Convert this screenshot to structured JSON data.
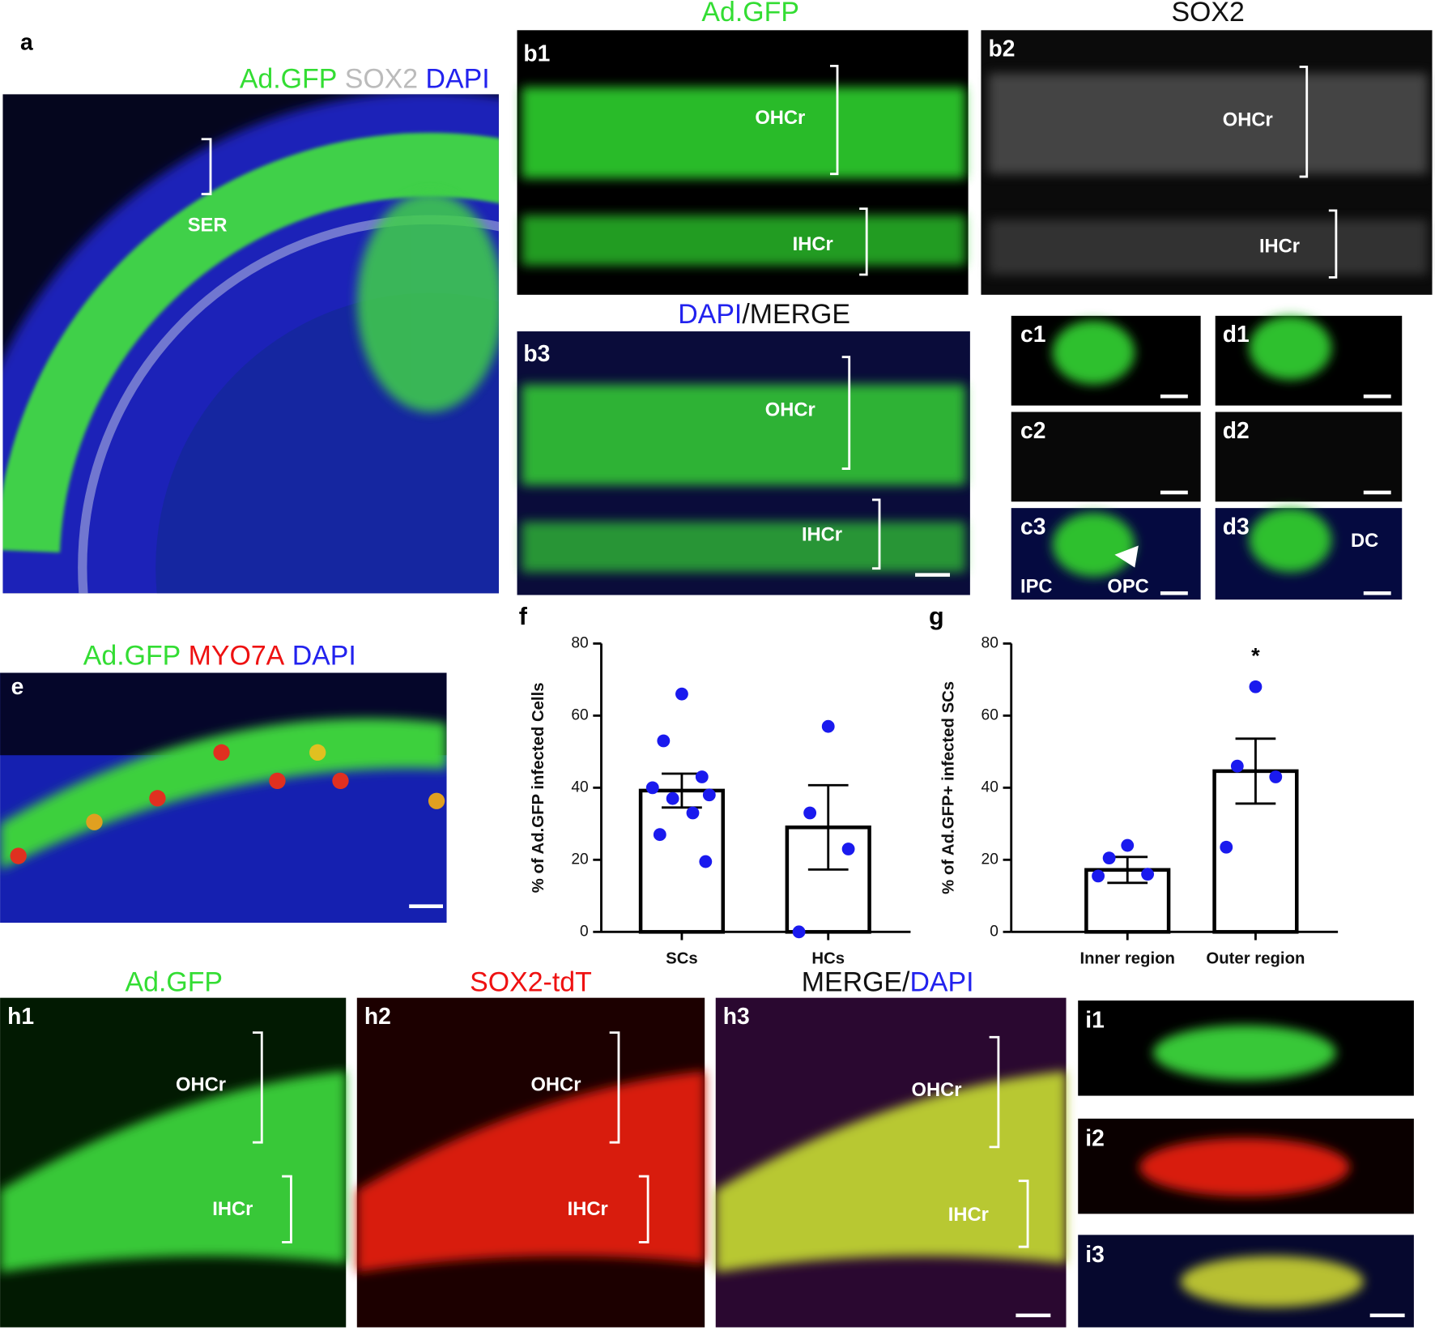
{
  "panels": {
    "a": {
      "label": "a",
      "title": [
        "Ad.GFP",
        "SOX2",
        "DAPI"
      ],
      "annotations": [
        "SER"
      ]
    },
    "b1": {
      "label": "b1",
      "title": "Ad.GFP",
      "annotations": [
        "OHCr",
        "IHCr"
      ]
    },
    "b2": {
      "label": "b2",
      "title": "SOX2",
      "annotations": [
        "OHCr",
        "IHCr"
      ]
    },
    "b3": {
      "label": "b3",
      "title": [
        "DAPI",
        "/MERGE"
      ],
      "annotations": [
        "OHCr",
        "IHCr"
      ]
    },
    "c1": {
      "label": "c1"
    },
    "c2": {
      "label": "c2"
    },
    "c3": {
      "label": "c3",
      "annotations": [
        "IPC",
        "OPC"
      ]
    },
    "d1": {
      "label": "d1"
    },
    "d2": {
      "label": "d2"
    },
    "d3": {
      "label": "d3",
      "annotations": [
        "DC"
      ]
    },
    "e": {
      "label": "e",
      "title": [
        "Ad.GFP",
        "MYO7A",
        "DAPI"
      ]
    },
    "h1": {
      "label": "h1",
      "title": "Ad.GFP",
      "annotations": [
        "OHCr",
        "IHCr"
      ]
    },
    "h2": {
      "label": "h2",
      "title": "SOX2-tdT",
      "annotations": [
        "OHCr",
        "IHCr"
      ]
    },
    "h3": {
      "label": "h3",
      "title": [
        "MERGE/",
        "DAPI"
      ],
      "annotations": [
        "OHCr",
        "IHCr"
      ]
    },
    "i1": {
      "label": "i1"
    },
    "i2": {
      "label": "i2"
    },
    "i3": {
      "label": "i3"
    }
  },
  "chart_data": [
    {
      "type": "bar",
      "label": "f",
      "ylabel": "% of Ad.GFP infected Cells",
      "categories": [
        "SCs",
        "HCs"
      ],
      "values": [
        39.2,
        29
      ],
      "errors": [
        4.7,
        11.7
      ],
      "points": [
        [
          66,
          53,
          43,
          40,
          38,
          37,
          33,
          27,
          19.5
        ],
        [
          57,
          33,
          23,
          0
        ]
      ],
      "ylim": [
        0,
        80
      ],
      "yticks": [
        0,
        20,
        40,
        60,
        80
      ],
      "color": "#ffffff",
      "point_color": "#1a1aee"
    },
    {
      "type": "bar",
      "label": "g",
      "ylabel": "% of Ad.GFP+ infected SCs",
      "categories": [
        "Inner region",
        "Outer region"
      ],
      "values": [
        17.2,
        44.6
      ],
      "errors": [
        3.6,
        9
      ],
      "points": [
        [
          24,
          20.5,
          16,
          15.5
        ],
        [
          68,
          46,
          43,
          23.5
        ]
      ],
      "annotations": [
        "*"
      ],
      "ylim": [
        0,
        80
      ],
      "yticks": [
        0,
        20,
        40,
        60,
        80
      ],
      "color": "#ffffff",
      "point_color": "#1a1aee"
    }
  ]
}
